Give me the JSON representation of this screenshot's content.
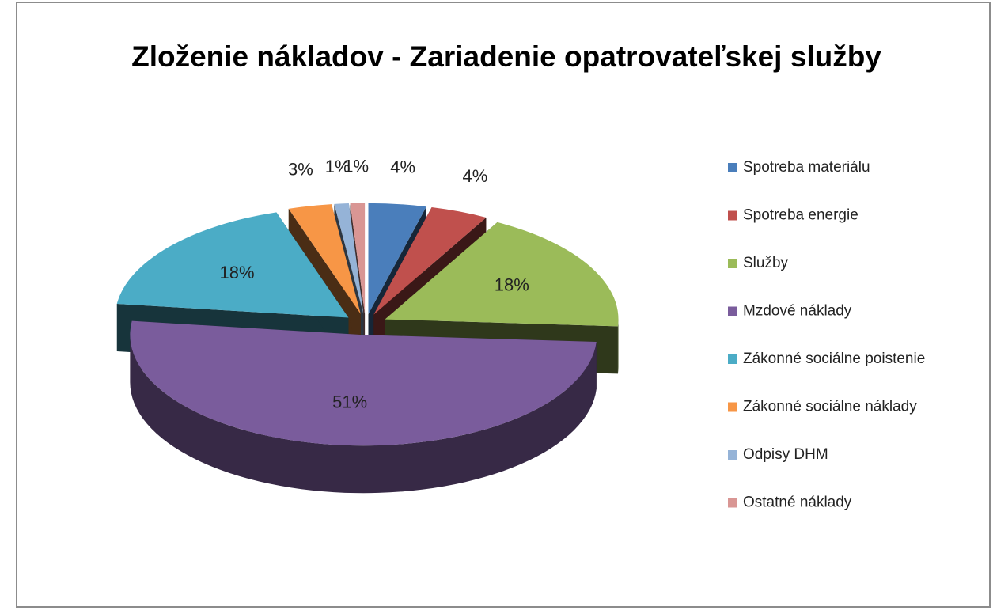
{
  "chart_data": {
    "type": "pie",
    "title": "Zloženie nákladov - Zariadenie opatrovateľskej služby",
    "categories": [
      "Spotreba materiálu",
      "Spotreba energie",
      "Služby",
      "Mzdové náklady",
      "Zákonné sociálne poistenie",
      "Zákonné sociálne náklady",
      "Odpisy DHM",
      "Ostatné náklady"
    ],
    "values": [
      4,
      4,
      18,
      51,
      18,
      3,
      1,
      1
    ],
    "value_labels": [
      "4%",
      "4%",
      "18%",
      "51%",
      "18%",
      "3%",
      "1%",
      "1%"
    ],
    "colors": [
      "#4a7ebb",
      "#c0504d",
      "#9bbb59",
      "#7a5c9c",
      "#4bacc6",
      "#f79646",
      "#95b3d7",
      "#d99694"
    ],
    "legend": "right"
  }
}
